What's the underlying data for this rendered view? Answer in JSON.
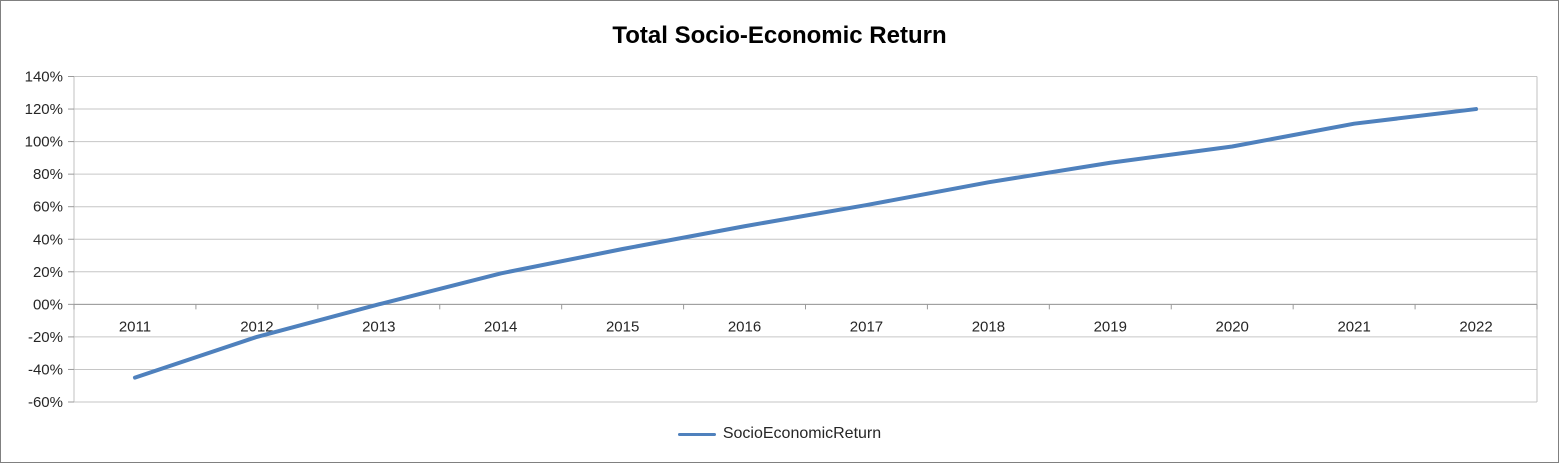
{
  "chart": {
    "title": "Total Socio-Economic Return"
  },
  "legend": {
    "label": "SocioEconomicReturn"
  },
  "colors": {
    "series_line": "#4F81BD",
    "gridline": "#C6C6C6",
    "axis_line": "#9A9A9A",
    "plot_border": "#C0C0C0",
    "axis_text": "#262626",
    "title_text": "#000000",
    "chart_border": "#808080"
  },
  "chart_data": {
    "type": "line",
    "title": "Total Socio-Economic Return",
    "categories": [
      "2011",
      "2012",
      "2013",
      "2014",
      "2015",
      "2016",
      "2017",
      "2018",
      "2019",
      "2020",
      "2021",
      "2022"
    ],
    "series": [
      {
        "name": "SocioEconomicReturn",
        "color": "#4F81BD",
        "values_percent": [
          -45,
          -20,
          0,
          19,
          34,
          48,
          61,
          75,
          87,
          97,
          111,
          120
        ]
      }
    ],
    "xlabel": "",
    "ylabel": "",
    "ylim_percent": [
      -60,
      140
    ],
    "y_tick_labels": [
      "140%",
      "120%",
      "100%",
      "80%",
      "60%",
      "40%",
      "20%",
      "00%",
      "-20%",
      "-40%",
      "-60%"
    ],
    "y_tick_values_percent": [
      140,
      120,
      100,
      80,
      60,
      40,
      20,
      0,
      -20,
      -40,
      -60
    ],
    "grid": true,
    "legend_position": "bottom-center",
    "legend_entries": [
      "SocioEconomicReturn"
    ]
  }
}
